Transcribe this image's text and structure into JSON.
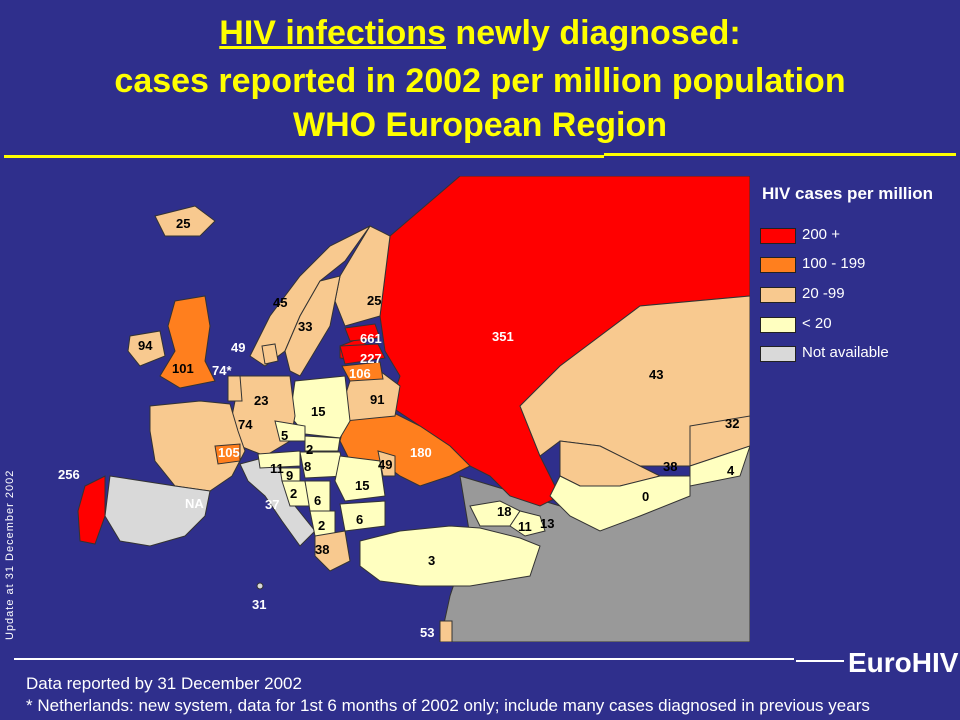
{
  "title": {
    "underlined": "HIV infections",
    "rest": " newly diagnosed:",
    "line2": "cases reported in 2002 per million population",
    "line3": "WHO European Region"
  },
  "legend": {
    "title": "HIV cases per million",
    "items": [
      {
        "label": "200 +",
        "color": "#ff0000"
      },
      {
        "label": "100 - 199",
        "color": "#ff7f1e"
      },
      {
        "label": "20  -99",
        "color": "#f8c98f"
      },
      {
        "label": "< 20",
        "color": "#ffffc0"
      },
      {
        "label": "Not available",
        "color": "#d9d9d9"
      }
    ]
  },
  "colors": {
    "background": "#2f2f8c",
    "sea": "#2f2f8c",
    "title": "#ffff00",
    "non_region": "#999999"
  },
  "map_labels": {
    "iceland": "25",
    "ireland": "94",
    "uk": "101",
    "netherlands": "74*",
    "denmark": "49",
    "norway": "45",
    "sweden": "33",
    "finland": "25",
    "estonia": "661",
    "latvia": "227",
    "lithuania": "106",
    "russia": "351",
    "kazakhstan": "43",
    "belarus": "91",
    "poland": "15",
    "germany": "23",
    "france": "74",
    "switzerland": "105",
    "portugal": "256",
    "spain_na": "NA",
    "italy": "37",
    "czech": "5",
    "slovakia": "2",
    "austria": "11",
    "hungary": "8",
    "slovenia": "9",
    "croatia": "2",
    "bosnia": "6",
    "serbia": "2",
    "romania": "15",
    "moldova": "49",
    "ukraine": "180",
    "bulgaria": "6",
    "greece": "38",
    "turkey": "3",
    "malta": "31",
    "israel": "53",
    "georgia": "18",
    "armenia": "11",
    "azerbaijan": "13",
    "uzbekistan": "38",
    "turkmenistan": "0",
    "kyrgyzstan": "32",
    "tajikistan": "4"
  },
  "side_note": "Update at  31 December  2002",
  "brand": "EuroHIV",
  "footnotes": {
    "line1": "Data reported by 31 December 2002",
    "line2": "* Netherlands: new system, data for 1st  6 months of 2002 only; include many cases diagnosed in previous years"
  }
}
